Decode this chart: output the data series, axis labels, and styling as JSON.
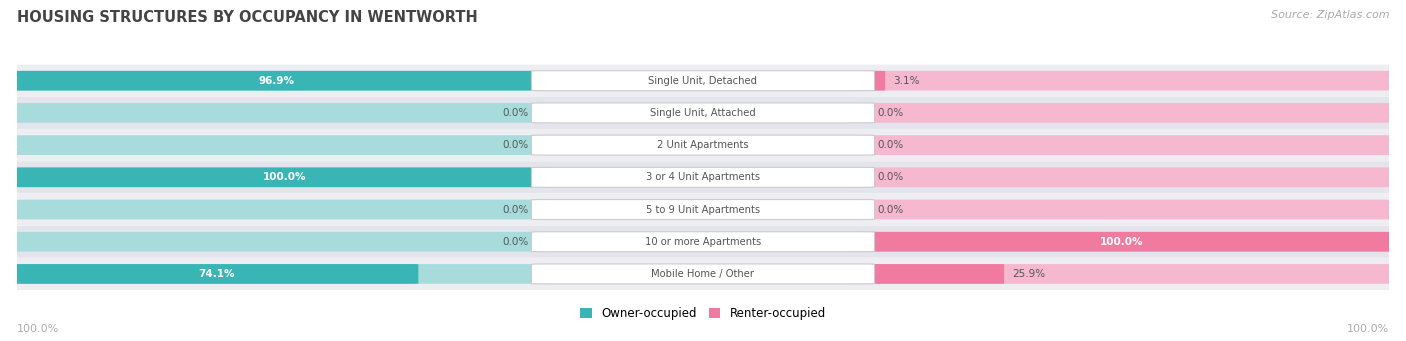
{
  "title": "HOUSING STRUCTURES BY OCCUPANCY IN WENTWORTH",
  "source": "Source: ZipAtlas.com",
  "categories": [
    "Single Unit, Detached",
    "Single Unit, Attached",
    "2 Unit Apartments",
    "3 or 4 Unit Apartments",
    "5 to 9 Unit Apartments",
    "10 or more Apartments",
    "Mobile Home / Other"
  ],
  "owner_pct": [
    96.9,
    0.0,
    0.0,
    100.0,
    0.0,
    0.0,
    74.1
  ],
  "renter_pct": [
    3.1,
    0.0,
    0.0,
    0.0,
    0.0,
    100.0,
    25.9
  ],
  "owner_color": "#3ab5b5",
  "renter_color": "#f07aa0",
  "owner_color_light": "#a8dcdc",
  "renter_color_light": "#f5b8ce",
  "row_bg_even": "#ededf2",
  "row_bg_odd": "#e4e4ec",
  "title_color": "#444444",
  "text_color": "#555555",
  "axis_label_color": "#aaaaaa",
  "source_color": "#aaaaaa",
  "legend_owner": "Owner-occupied",
  "legend_renter": "Renter-occupied",
  "figsize": [
    14.06,
    3.41
  ],
  "dpi": 100
}
